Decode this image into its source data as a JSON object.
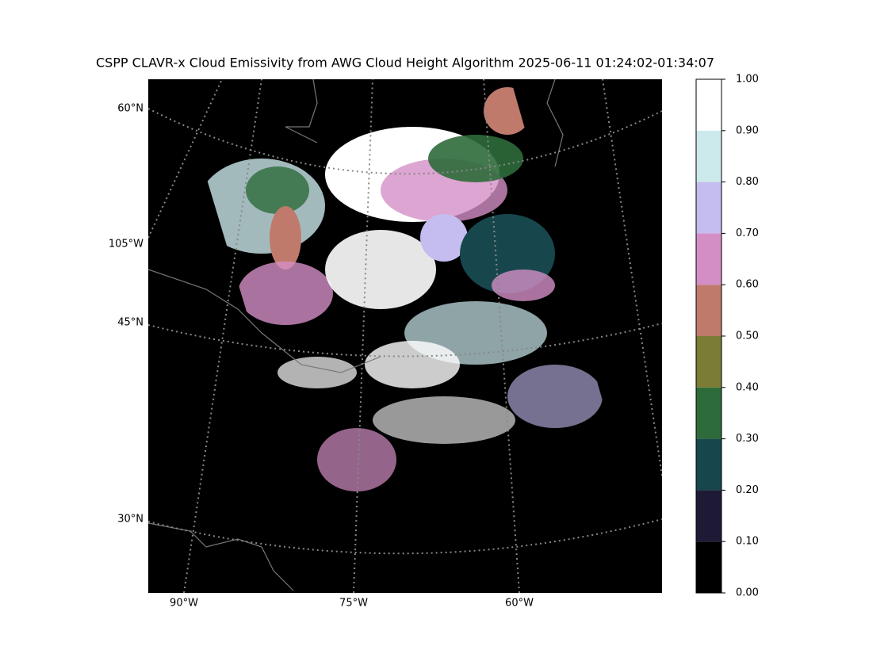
{
  "title": "CSPP CLAVR-x Cloud Emissivity from AWG Cloud Height Algorithm 2025-06-11 01:24:02-01:34:07",
  "map": {
    "lat_labels": [
      "60°N",
      "45°N",
      "30°N"
    ],
    "lon_labels": [
      "105°W",
      "90°W",
      "75°W",
      "60°W"
    ]
  },
  "colorbar": {
    "ticks": [
      {
        "value": 0.0,
        "label": "0.00"
      },
      {
        "value": 0.1,
        "label": "0.10"
      },
      {
        "value": 0.2,
        "label": "0.20"
      },
      {
        "value": 0.3,
        "label": "0.30"
      },
      {
        "value": 0.4,
        "label": "0.40"
      },
      {
        "value": 0.5,
        "label": "0.50"
      },
      {
        "value": 0.6,
        "label": "0.60"
      },
      {
        "value": 0.7,
        "label": "0.70"
      },
      {
        "value": 0.8,
        "label": "0.80"
      },
      {
        "value": 0.9,
        "label": "0.90"
      },
      {
        "value": 1.0,
        "label": "1.00"
      }
    ],
    "colors": [
      "#000000",
      "#1e1a36",
      "#17474d",
      "#2d6b3a",
      "#7b7c35",
      "#c07a6c",
      "#d48ec6",
      "#c5bdf0",
      "#cce9ec",
      "#ffffff"
    ]
  }
}
